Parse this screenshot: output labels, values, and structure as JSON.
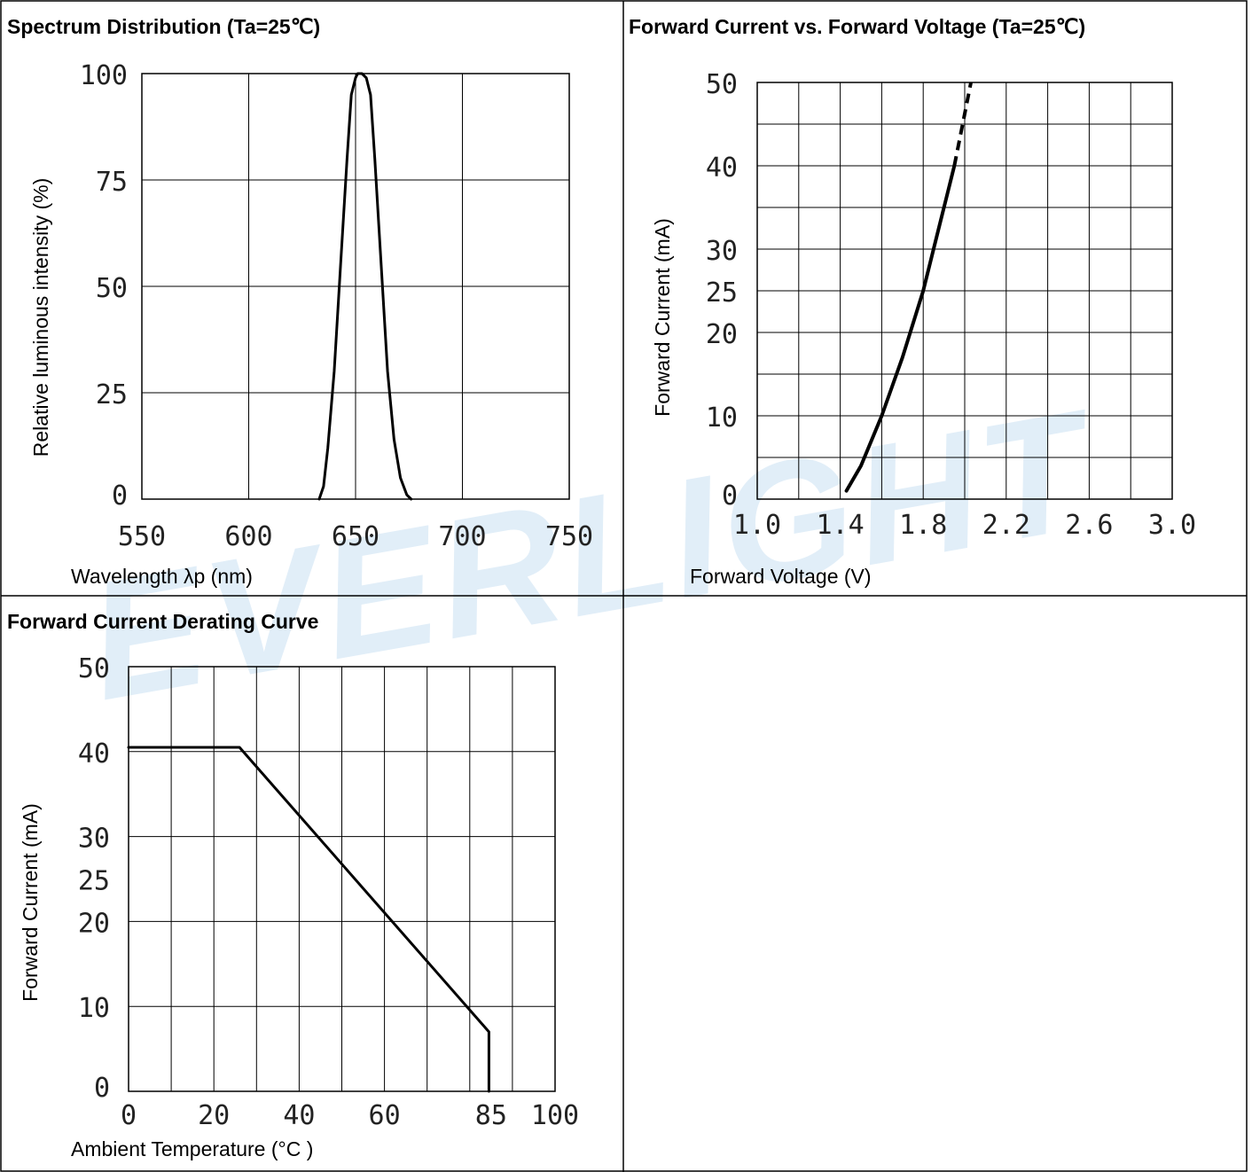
{
  "watermark": "EVERLIGHT",
  "colors": {
    "line": "#000000",
    "grid": "#000000",
    "watermark": "#e1eef8"
  },
  "panels": {
    "spectrum": {
      "title": "Spectrum Distribution (Ta=25℃)"
    },
    "iv": {
      "title": "Forward Current vs. Forward Voltage (Ta=25℃)"
    },
    "derating": {
      "title": "Forward Current Derating Curve"
    }
  },
  "chart_data": [
    {
      "id": "spectrum",
      "type": "line",
      "title": "Spectrum Distribution (Ta=25℃)",
      "xlabel": "Wavelength λp (nm)",
      "ylabel": "Relative luminous intensity (%)",
      "xlim": [
        550,
        750
      ],
      "ylim": [
        0,
        100
      ],
      "xticks": [
        550,
        600,
        650,
        700,
        750
      ],
      "xtick_labels": [
        "550",
        "600",
        "650",
        "700",
        "750"
      ],
      "yticks": [
        0,
        25,
        50,
        75,
        100
      ],
      "ytick_labels": [
        "0",
        "25",
        "50",
        "75",
        "100"
      ],
      "grid": true,
      "series": [
        {
          "x": [
            633,
            635,
            637,
            640,
            643,
            646,
            648,
            650,
            651,
            653,
            655,
            657,
            659,
            662,
            665,
            668,
            671,
            674,
            676
          ],
          "y": [
            0,
            3,
            12,
            30,
            55,
            80,
            95,
            99,
            100,
            100,
            99,
            95,
            80,
            55,
            30,
            14,
            5,
            1,
            0
          ]
        }
      ]
    },
    {
      "id": "iv",
      "type": "line",
      "title": "Forward Current vs. Forward Voltage (Ta=25℃)",
      "xlabel": "Forward Voltage (V)",
      "ylabel": "Forward Current (mA)",
      "xlim": [
        1.0,
        3.0
      ],
      "ylim": [
        0,
        50
      ],
      "xticks": [
        1.0,
        1.4,
        1.8,
        2.2,
        2.6,
        3.0
      ],
      "xtick_labels": [
        "1.0",
        "1.4",
        "1.8",
        "2.2",
        "2.6",
        "3.0"
      ],
      "yticks": [
        0,
        10,
        20,
        25,
        30,
        40,
        50
      ],
      "ytick_labels": [
        "0",
        "10",
        "20",
        "25",
        "30",
        "40",
        "50"
      ],
      "x_gridlines": [
        1.0,
        1.2,
        1.4,
        1.6,
        1.8,
        2.0,
        2.2,
        2.4,
        2.6,
        2.8,
        3.0
      ],
      "y_gridlines": [
        0,
        5,
        10,
        15,
        20,
        25,
        30,
        35,
        40,
        45,
        50
      ],
      "grid": true,
      "series": [
        {
          "style": "solid",
          "x": [
            1.43,
            1.5,
            1.6,
            1.7,
            1.8,
            1.86,
            1.92,
            1.95
          ],
          "y": [
            1,
            4,
            10,
            17,
            25,
            31,
            37,
            40
          ]
        },
        {
          "style": "dashed",
          "x": [
            1.95,
            1.99,
            2.03
          ],
          "y": [
            40,
            45,
            50
          ]
        }
      ]
    },
    {
      "id": "derating",
      "type": "line",
      "title": "Forward Current Derating Curve",
      "xlabel": "Ambient Temperature (°C )",
      "ylabel": "Forward Current (mA)",
      "xlim": [
        0,
        100
      ],
      "ylim": [
        0,
        50
      ],
      "xticks": [
        0,
        20,
        40,
        60,
        85,
        100
      ],
      "xtick_labels": [
        "0",
        "20",
        "40",
        "60",
        "85",
        "100"
      ],
      "yticks": [
        0,
        10,
        20,
        25,
        30,
        40,
        50
      ],
      "ytick_labels": [
        "0",
        "10",
        "20",
        "25",
        "30",
        "40",
        "50"
      ],
      "x_gridlines": [
        0,
        10,
        20,
        30,
        40,
        50,
        60,
        70,
        80,
        90,
        100
      ],
      "y_gridlines": [
        0,
        10,
        20,
        30,
        40,
        50
      ],
      "grid": true,
      "series": [
        {
          "x": [
            0,
            26,
            84.5,
            84.5
          ],
          "y": [
            40.5,
            40.5,
            7,
            0
          ]
        }
      ]
    }
  ]
}
